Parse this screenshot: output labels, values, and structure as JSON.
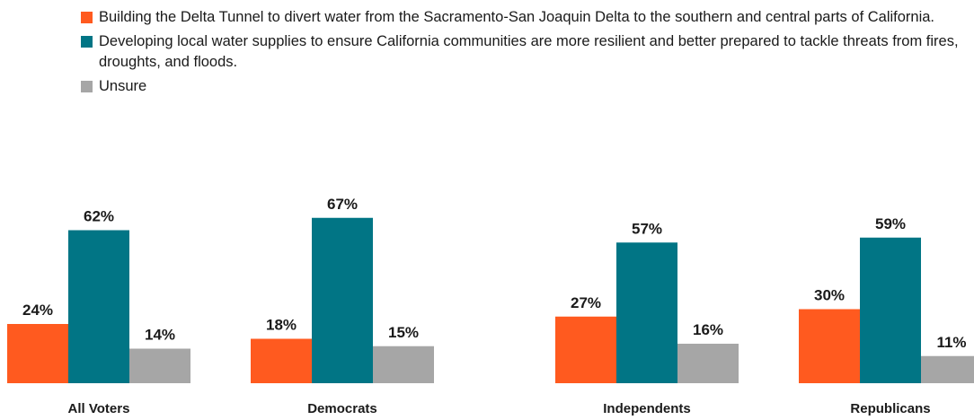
{
  "chart_data": {
    "type": "bar",
    "title": "",
    "xlabel": "",
    "ylabel": "",
    "ylim": [
      0,
      70
    ],
    "grid": false,
    "legend_position": "top",
    "categories": [
      "All Voters",
      "Democrats",
      "Independents",
      "Republicans"
    ],
    "series": [
      {
        "name": "Building the Delta Tunnel to divert water from the Sacramento-San Joaquin Delta to the southern and central parts of California.",
        "color": "#ff5a1f",
        "values": [
          24,
          18,
          27,
          30
        ],
        "labels": [
          "24%",
          "18%",
          "27%",
          "30%"
        ]
      },
      {
        "name": "Developing local water supplies to ensure California communities are more resilient and better prepared to tackle threats from fires, droughts, and floods.",
        "color": "#017585",
        "values": [
          62,
          67,
          57,
          59
        ],
        "labels": [
          "62%",
          "67%",
          "57%",
          "59%"
        ]
      },
      {
        "name": "Unsure",
        "color": "#a6a6a6",
        "values": [
          14,
          15,
          16,
          11
        ],
        "labels": [
          "14%",
          "15%",
          "16%",
          "11%"
        ]
      }
    ]
  }
}
